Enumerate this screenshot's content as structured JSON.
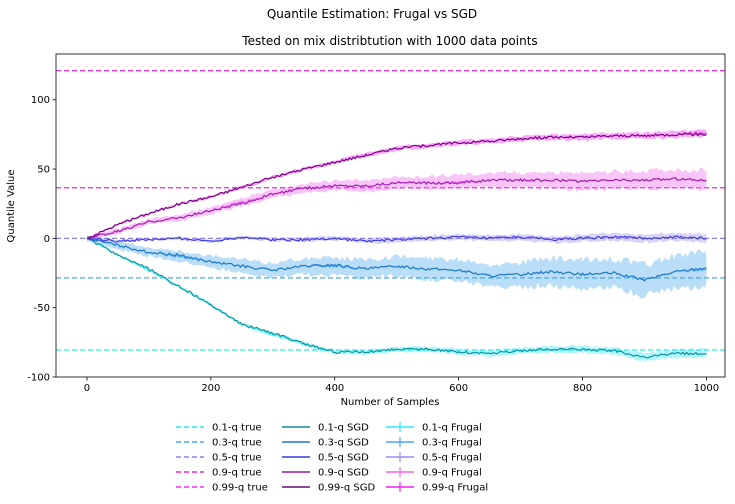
{
  "chart_data": {
    "type": "line",
    "title": "Quantile Estimation: Frugal vs SGD",
    "subtitle": "Tested on mix distribtution with 1000 data points",
    "xlabel": "Number of Samples",
    "ylabel": "Quantile Value",
    "xlim": [
      -50,
      1030
    ],
    "ylim": [
      -100,
      133
    ],
    "xticks": [
      0,
      200,
      400,
      600,
      800,
      1000
    ],
    "yticks": [
      -100,
      -50,
      0,
      50,
      100
    ],
    "grid": false,
    "legend_placement": "bottom-center",
    "true_lines": [
      {
        "name": "0.1-q true",
        "value": -80.5,
        "color": "#2ee6e6"
      },
      {
        "name": "0.3-q true",
        "value": -28.5,
        "color": "#42ade8"
      },
      {
        "name": "0.5-q true",
        "value": 0.0,
        "color": "#8a80e8"
      },
      {
        "name": "0.9-q true",
        "value": 36.5,
        "color": "#e625e6"
      },
      {
        "name": "0.99-q true",
        "value": 121.0,
        "color": "#f52ef5"
      }
    ],
    "sgd_series": [
      {
        "name": "0.1-q SGD",
        "color": "#0f8a96",
        "x": [
          0,
          50,
          100,
          150,
          200,
          250,
          300,
          350,
          400,
          450,
          500,
          550,
          600,
          650,
          700,
          750,
          800,
          850,
          900,
          950,
          1000
        ],
        "y": [
          0,
          -12,
          -22,
          -35,
          -48,
          -62,
          -68,
          -76,
          -82,
          -82,
          -80,
          -80,
          -82,
          -83,
          -81,
          -80,
          -80,
          -81,
          -86,
          -83,
          -83
        ]
      },
      {
        "name": "0.3-q SGD",
        "color": "#1f77c8",
        "x": [
          0,
          50,
          100,
          150,
          200,
          250,
          300,
          350,
          400,
          450,
          500,
          550,
          600,
          650,
          700,
          750,
          800,
          850,
          900,
          950,
          1000
        ],
        "y": [
          0,
          -5,
          -10,
          -12,
          -17,
          -20,
          -23,
          -20,
          -19,
          -22,
          -20,
          -22,
          -23,
          -27,
          -26,
          -24,
          -26,
          -25,
          -30,
          -24,
          -21
        ]
      },
      {
        "name": "0.5-q SGD",
        "color": "#3a3ad9",
        "x": [
          0,
          50,
          100,
          150,
          200,
          250,
          300,
          350,
          400,
          450,
          500,
          550,
          600,
          650,
          700,
          750,
          800,
          850,
          900,
          950,
          1000
        ],
        "y": [
          0,
          -2,
          -1,
          0,
          -2,
          1,
          -1,
          -1,
          0,
          -2,
          -1,
          0,
          1,
          0,
          1,
          -1,
          0,
          1,
          0,
          1,
          0
        ]
      },
      {
        "name": "0.9-q SGD",
        "color": "#9a1aa8",
        "x": [
          0,
          50,
          100,
          150,
          200,
          250,
          300,
          350,
          400,
          450,
          500,
          550,
          600,
          650,
          700,
          750,
          800,
          850,
          900,
          950,
          1000
        ],
        "y": [
          0,
          5,
          12,
          15,
          20,
          25,
          32,
          36,
          38,
          38,
          40,
          40,
          40,
          42,
          42,
          42,
          41,
          42,
          42,
          43,
          42
        ]
      },
      {
        "name": "0.99-q SGD",
        "color": "#6a0a78",
        "x": [
          0,
          50,
          100,
          150,
          200,
          250,
          300,
          350,
          400,
          450,
          500,
          550,
          600,
          650,
          700,
          750,
          800,
          850,
          900,
          950,
          1000
        ],
        "y": [
          0,
          10,
          18,
          25,
          30,
          37,
          44,
          50,
          55,
          60,
          65,
          67,
          69,
          70,
          72,
          73,
          73,
          74,
          74,
          75,
          75
        ]
      }
    ],
    "frugal_series": [
      {
        "name": "0.1-q Frugal",
        "color": "#33e8f5",
        "band": 3,
        "x": [
          0,
          50,
          100,
          150,
          200,
          250,
          300,
          350,
          400,
          450,
          500,
          550,
          600,
          650,
          700,
          750,
          800,
          850,
          900,
          950,
          1000
        ],
        "y": [
          0,
          -12,
          -23,
          -35,
          -48,
          -62,
          -69,
          -76,
          -82,
          -82,
          -80,
          -80,
          -82,
          -83,
          -81,
          -80,
          -80,
          -81,
          -86,
          -83,
          -83
        ]
      },
      {
        "name": "0.3-q Frugal",
        "color": "#4aa8ec",
        "band": 12,
        "x": [
          0,
          50,
          100,
          150,
          200,
          250,
          300,
          350,
          400,
          450,
          500,
          550,
          600,
          650,
          700,
          750,
          800,
          850,
          900,
          950,
          1000
        ],
        "y": [
          0,
          -5,
          -10,
          -13,
          -17,
          -20,
          -23,
          -20,
          -20,
          -22,
          -20,
          -22,
          -23,
          -27,
          -26,
          -24,
          -26,
          -25,
          -30,
          -24,
          -22
        ]
      },
      {
        "name": "0.5-q Frugal",
        "color": "#9a8cf0",
        "band": 3,
        "x": [
          0,
          50,
          100,
          150,
          200,
          250,
          300,
          350,
          400,
          450,
          500,
          550,
          600,
          650,
          700,
          750,
          800,
          850,
          900,
          950,
          1000
        ],
        "y": [
          0,
          -2,
          -1,
          0,
          -2,
          1,
          -1,
          -1,
          0,
          -2,
          -1,
          0,
          1,
          0,
          1,
          -1,
          0,
          1,
          0,
          1,
          0
        ]
      },
      {
        "name": "0.9-q Frugal",
        "color": "#ee66ee",
        "band": 7,
        "x": [
          0,
          50,
          100,
          150,
          200,
          250,
          300,
          350,
          400,
          450,
          500,
          550,
          600,
          650,
          700,
          750,
          800,
          850,
          900,
          950,
          1000
        ],
        "y": [
          0,
          5,
          12,
          15,
          20,
          26,
          32,
          36,
          38,
          38,
          40,
          40,
          41,
          42,
          42,
          42,
          41,
          42,
          42,
          43,
          42
        ]
      },
      {
        "name": "0.99-q Frugal",
        "color": "#f020f0",
        "band": 2.5,
        "x": [
          0,
          50,
          100,
          150,
          200,
          250,
          300,
          350,
          400,
          450,
          500,
          550,
          600,
          650,
          700,
          750,
          800,
          850,
          900,
          950,
          1000
        ],
        "y": [
          0,
          10,
          18,
          25,
          30,
          37,
          44,
          50,
          55,
          60,
          65,
          67,
          69,
          70,
          72,
          73,
          73,
          74,
          74,
          75,
          76
        ]
      }
    ],
    "legend_columns": [
      [
        "0.1-q true",
        "0.3-q true",
        "0.5-q true",
        "0.9-q true",
        "0.99-q true"
      ],
      [
        "0.1-q SGD",
        "0.3-q SGD",
        "0.5-q SGD",
        "0.9-q SGD",
        "0.99-q SGD"
      ],
      [
        "0.1-q Frugal",
        "0.3-q Frugal",
        "0.5-q Frugal",
        "0.9-q Frugal",
        "0.99-q Frugal"
      ]
    ]
  }
}
